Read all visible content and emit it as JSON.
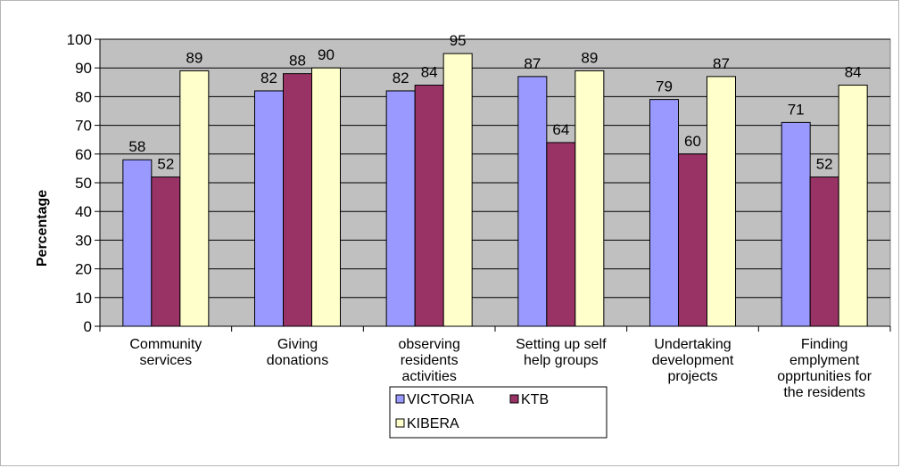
{
  "chart_data": {
    "type": "bar",
    "title": "",
    "xlabel": "",
    "ylabel": "Percentage",
    "ylim": [
      0,
      100
    ],
    "yticks": [
      0,
      10,
      20,
      30,
      40,
      50,
      60,
      70,
      80,
      90,
      100
    ],
    "grid": true,
    "legend_position": "bottom-center",
    "categories": [
      [
        "Community",
        "services"
      ],
      [
        "Giving",
        "donations"
      ],
      [
        "observing",
        "residents",
        "activities"
      ],
      [
        "Setting up self",
        "help groups"
      ],
      [
        "Undertaking",
        "development",
        "projects"
      ],
      [
        "Finding",
        "emplyment",
        "opprtunities for",
        "the residents"
      ]
    ],
    "series": [
      {
        "name": "VICTORIA",
        "color": "#9999ff",
        "values": [
          58,
          82,
          82,
          87,
          79,
          71
        ]
      },
      {
        "name": "KTB",
        "color": "#993366",
        "values": [
          52,
          88,
          84,
          64,
          60,
          52
        ]
      },
      {
        "name": "KIBERA",
        "color": "#ffffcc",
        "values": [
          89,
          90,
          95,
          89,
          87,
          84
        ]
      }
    ],
    "plot_background": "#c0c0c0"
  }
}
